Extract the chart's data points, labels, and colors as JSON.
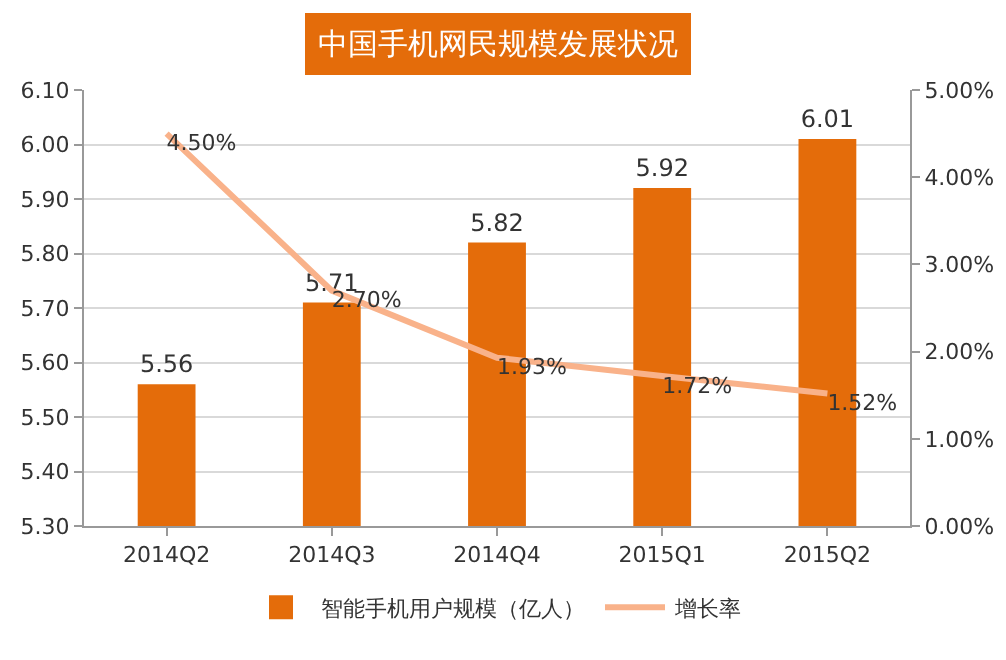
{
  "chart_data": {
    "type": "bar",
    "title": "中国手机网民规模发展状况",
    "categories": [
      "2014Q2",
      "2014Q3",
      "2014Q4",
      "2015Q1",
      "2015Q2"
    ],
    "series": [
      {
        "name": "智能手机用户规模（亿人）",
        "color": "#e46c0a",
        "values": [
          5.56,
          5.71,
          5.82,
          5.92,
          6.01
        ],
        "value_labels": [
          "5.56",
          "5.71",
          "5.82",
          "5.92",
          "6.01"
        ]
      },
      {
        "name": "增长率",
        "type": "line",
        "axis": "y2",
        "color": "#f9b28a",
        "values": [
          4.5,
          2.7,
          1.93,
          1.72,
          1.52
        ],
        "value_labels": [
          "4.50%",
          "2.70%",
          "1.93%",
          "1.72%",
          "1.52%"
        ]
      }
    ],
    "ylim": [
      5.3,
      6.1
    ],
    "yticks": [
      {
        "value": 5.3,
        "label": "5.30"
      },
      {
        "value": 5.4,
        "label": "5.40"
      },
      {
        "value": 5.5,
        "label": "5.50"
      },
      {
        "value": 5.6,
        "label": "5.60"
      },
      {
        "value": 5.7,
        "label": "5.70"
      },
      {
        "value": 5.8,
        "label": "5.80"
      },
      {
        "value": 5.9,
        "label": "5.90"
      },
      {
        "value": 6.0,
        "label": "6.00"
      },
      {
        "value": 6.1,
        "label": "6.10"
      }
    ],
    "y2lim": [
      0,
      5
    ],
    "y2ticks": [
      {
        "value": 0,
        "label": "0.00%"
      },
      {
        "value": 1,
        "label": "1.00%"
      },
      {
        "value": 2,
        "label": "2.00%"
      },
      {
        "value": 3,
        "label": "3.00%"
      },
      {
        "value": 4,
        "label": "4.00%"
      },
      {
        "value": 5,
        "label": "5.00%"
      }
    ],
    "grid": "y",
    "legend": "bottom",
    "marker": "none",
    "line_style": "solid"
  }
}
